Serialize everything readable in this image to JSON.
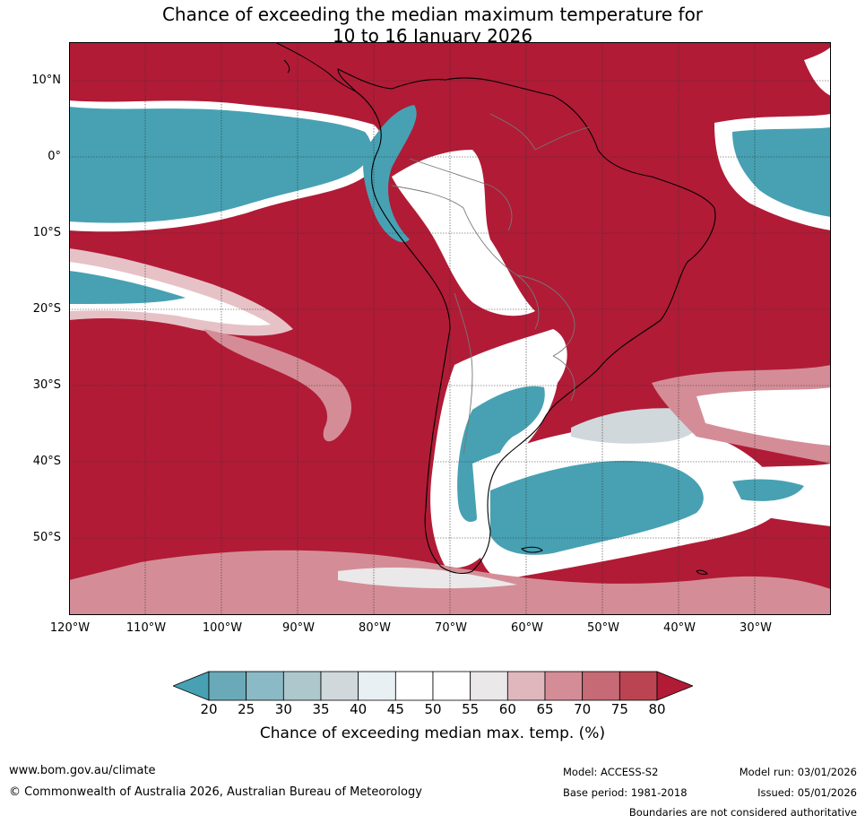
{
  "title_line1": "Chance of exceeding the median maximum temperature for",
  "title_line2": "10 to 16 January 2026",
  "lat_labels": [
    "10°N",
    "0°",
    "10°S",
    "20°S",
    "30°S",
    "40°S",
    "50°S"
  ],
  "lon_labels": [
    "120°W",
    "110°W",
    "100°W",
    "90°W",
    "80°W",
    "70°W",
    "60°W",
    "50°W",
    "40°W",
    "30°W"
  ],
  "colorbar": {
    "ticks": [
      "20",
      "25",
      "30",
      "35",
      "40",
      "45",
      "50",
      "55",
      "60",
      "65",
      "70",
      "75",
      "80"
    ],
    "colors": [
      "#47a1b3",
      "#6aaab8",
      "#8bbac6",
      "#adc8cd",
      "#d0d8dc",
      "#e9f0f3",
      "#ffffff",
      "#ffffff",
      "#ebe8ea",
      "#dfb7bd",
      "#d48d97",
      "#c66a76",
      "#bb4452",
      "#b11b36"
    ],
    "label": "Chance of exceeding median max. temp. (%)"
  },
  "map_colors": {
    "high": "#b11b36",
    "low": "#47a1b3",
    "mid": "#ffffff"
  },
  "footer": {
    "website": "www.bom.gov.au/climate",
    "copyright": "© Commonwealth of Australia 2026, Australian Bureau of Meteorology",
    "model": "Model: ACCESS-S2",
    "base_period": "Base period: 1981-2018",
    "model_run": "Model run: 03/01/2026",
    "issued": "Issued: 05/01/2026",
    "disclaimer": "Boundaries are not considered authoritative"
  }
}
